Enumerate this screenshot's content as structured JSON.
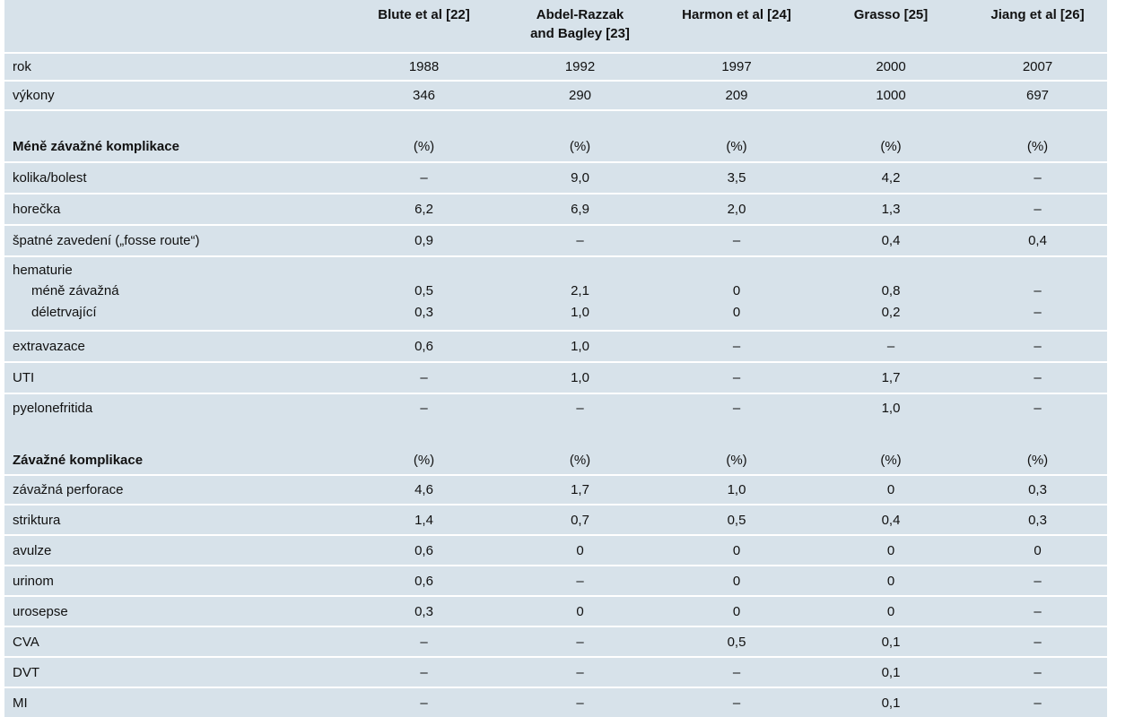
{
  "headers": [
    "Blute et al [22]",
    "Abdel-Razzak and Bagley [23]",
    "Harmon et al [24]",
    "Grasso [25]",
    "Jiang et al [26]"
  ],
  "headers_lines": [
    [
      "Blute et al [22]"
    ],
    [
      "Abdel-Razzak",
      "and Bagley [23]"
    ],
    [
      "Harmon et al [24]"
    ],
    [
      "Grasso [25]"
    ],
    [
      "Jiang et al [26]"
    ]
  ],
  "rows": [
    {
      "label": "rok",
      "values": [
        "1988",
        "1992",
        "1997",
        "2000",
        "2007"
      ]
    },
    {
      "label": "výkony",
      "values": [
        "346",
        "290",
        "209",
        "1000",
        "697"
      ]
    },
    {
      "label": "Méně závažné komplikace",
      "values": [
        "(%)",
        "(%)",
        "(%)",
        "(%)",
        "(%)"
      ]
    },
    {
      "label": "kolika/bolest",
      "values": [
        "–",
        "9,0",
        "3,5",
        "4,2",
        "–"
      ]
    },
    {
      "label": "horečka",
      "values": [
        "6,2",
        "6,9",
        "2,0",
        "1,3",
        "–"
      ]
    },
    {
      "label": "špatné zavedení („fosse route“)",
      "values": [
        "0,9",
        "–",
        "–",
        "0,4",
        "0,4"
      ]
    },
    {
      "label": "hematurie",
      "values": [
        "",
        "",
        "",
        "",
        ""
      ]
    },
    {
      "label": "méně závažná",
      "values": [
        "0,5",
        "2,1",
        "0",
        "0,8",
        "–"
      ]
    },
    {
      "label": "déletrvající",
      "values": [
        "0,3",
        "1,0",
        "0",
        "0,2",
        "–"
      ]
    },
    {
      "label": "extravazace",
      "values": [
        "0,6",
        "1,0",
        "–",
        "–",
        "–"
      ]
    },
    {
      "label": "UTI",
      "values": [
        "–",
        "1,0",
        "–",
        "1,7",
        "–"
      ]
    },
    {
      "label": "pyelonefritida",
      "values": [
        "–",
        "–",
        "–",
        "1,0",
        "–"
      ]
    },
    {
      "label": "Závažné komplikace",
      "values": [
        "(%)",
        "(%)",
        "(%)",
        "(%)",
        "(%)"
      ]
    },
    {
      "label": "závažná perforace",
      "values": [
        "4,6",
        "1,7",
        "1,0",
        "0",
        "0,3"
      ]
    },
    {
      "label": "striktura",
      "values": [
        "1,4",
        "0,7",
        "0,5",
        "0,4",
        "0,3"
      ]
    },
    {
      "label": "avulze",
      "values": [
        "0,6",
        "0",
        "0",
        "0",
        "0"
      ]
    },
    {
      "label": "urinom",
      "values": [
        "0,6",
        "–",
        "0",
        "0",
        "–"
      ]
    },
    {
      "label": "urosepse",
      "values": [
        "0,3",
        "0",
        "0",
        "0",
        "–"
      ]
    },
    {
      "label": "CVA",
      "values": [
        "–",
        "–",
        "0,5",
        "0,1",
        "–"
      ]
    },
    {
      "label": "DVT",
      "values": [
        "–",
        "–",
        "–",
        "0,1",
        "–"
      ]
    },
    {
      "label": "MI",
      "values": [
        "–",
        "–",
        "–",
        "0,1",
        "–"
      ]
    }
  ],
  "colors": {
    "table_bg": "#d7e2ea",
    "separator": "#ffffff",
    "text": "#111111"
  }
}
